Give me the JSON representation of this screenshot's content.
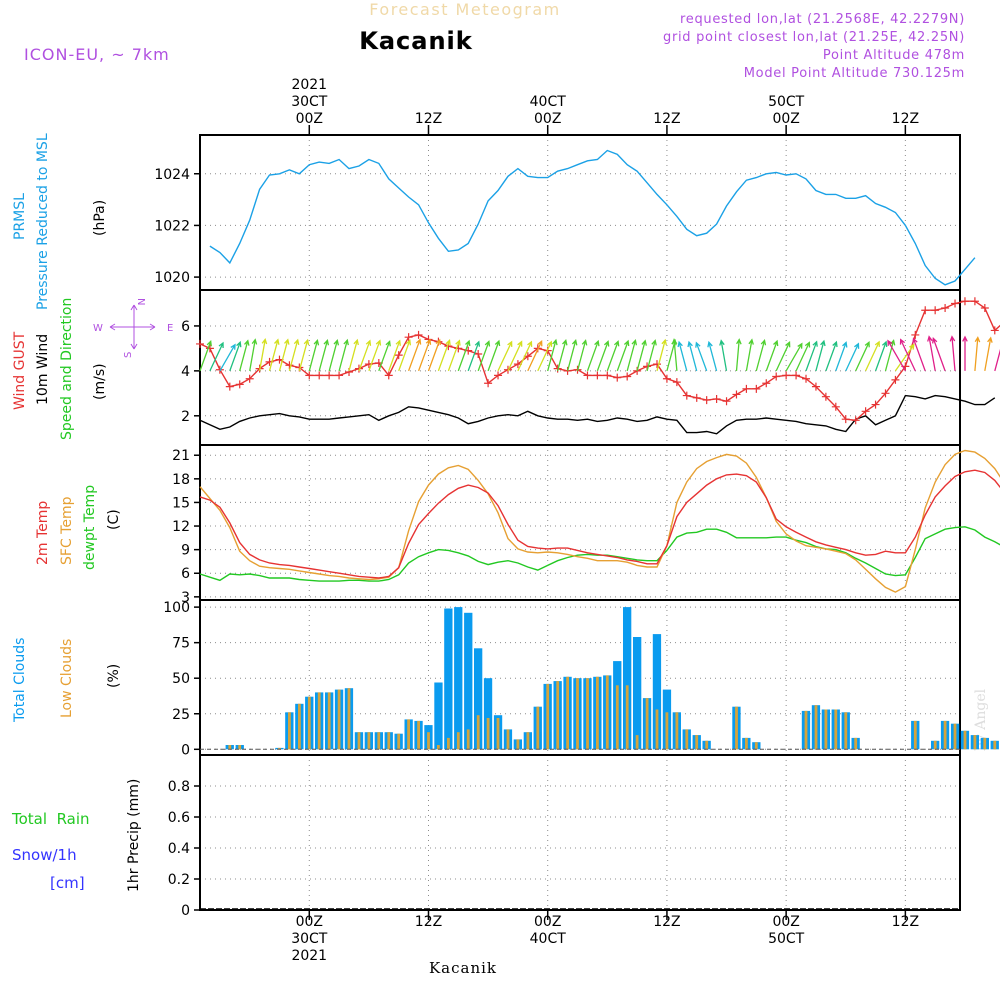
{
  "header": {
    "super_title": "Forecast Meteogram",
    "location": "Kacanik",
    "model": "ICON-EU, ~ 7km",
    "requested": "requested lon,lat (21.2568E, 42.2279N)",
    "grid_point": "grid point closest lon,lat (21.25E, 42.25N)",
    "point_alt": "Point Altitude 478m",
    "model_alt": "Model Point Altitude 730.125m",
    "watermark": "by Angel",
    "bottom_location": "Kacanik"
  },
  "colors": {
    "pressure": "#1ba1e6",
    "gust": "#e63333",
    "wind10": "#000000",
    "temp2m": "#e63333",
    "sfc": "#e6a033",
    "dewpt": "#22c822",
    "total_clouds": "#0a9bef",
    "low_clouds": "#d4a43c",
    "precip": "#000000",
    "label_purple": "#b050e0",
    "label_blue": "#3333ff",
    "label_green": "#22c822"
  },
  "time_axis": {
    "top": [
      {
        "h": 0,
        "lines": [
          "2021",
          "30CT",
          "00Z"
        ]
      },
      {
        "h": 12,
        "lines": [
          "12Z"
        ]
      },
      {
        "h": 24,
        "lines": [
          "40CT",
          "00Z"
        ]
      },
      {
        "h": 36,
        "lines": [
          "12Z"
        ]
      },
      {
        "h": 48,
        "lines": [
          "50CT",
          "00Z"
        ]
      },
      {
        "h": 60,
        "lines": [
          "12Z"
        ]
      }
    ],
    "bottom": [
      {
        "h": 0,
        "lines": [
          "00Z",
          "30CT",
          "2021"
        ]
      },
      {
        "h": 12,
        "lines": [
          "12Z"
        ]
      },
      {
        "h": 24,
        "lines": [
          "00Z",
          "40CT"
        ]
      },
      {
        "h": 36,
        "lines": [
          "12Z"
        ]
      },
      {
        "h": 48,
        "lines": [
          "00Z",
          "50CT"
        ]
      },
      {
        "h": 60,
        "lines": [
          "12Z"
        ]
      }
    ]
  },
  "panels": {
    "pressure": {
      "label1": "PRMSL",
      "label2": "Pressure Reduced to MSL",
      "units": "(hPa)"
    },
    "wind": {
      "gust": "Wind GUST",
      "w10": "10m Wind",
      "dir": "Speed and Direction",
      "units": "(m/s)",
      "compass_n": "N",
      "compass_s": "S",
      "compass_w": "W",
      "compass_e": "E"
    },
    "temp": {
      "t2m": "2m Temp",
      "sfc": "SFC Temp",
      "dew": "dewpt Temp",
      "units": "(C)"
    },
    "clouds": {
      "total": "Total Clouds",
      "low": "Low Clouds",
      "units": "(%)"
    },
    "precip": {
      "rain": "Total  Rain",
      "snow": "Snow/1h",
      "cm": "[cm]",
      "units": "1hr Precip (mm)"
    }
  },
  "chart_data": [
    {
      "type": "line",
      "title": "Pressure Reduced to MSL",
      "ylabel": "(hPa)",
      "x_start_hour": -11,
      "x_end_hour": 65.5,
      "ylim": [
        1019.5,
        1025.5
      ],
      "yticks": [
        1020,
        1022,
        1024
      ],
      "series": [
        {
          "name": "PRMSL",
          "x_start": -10,
          "step": 1,
          "values": [
            1021.2,
            1020.95,
            1020.55,
            1021.3,
            1022.2,
            1023.4,
            1023.95,
            1024.0,
            1024.15,
            1024.0,
            1024.35,
            1024.45,
            1024.4,
            1024.55,
            1024.2,
            1024.3,
            1024.55,
            1024.4,
            1023.8,
            1023.45,
            1023.1,
            1022.8,
            1022.1,
            1021.5,
            1021.0,
            1021.05,
            1021.3,
            1022.05,
            1022.95,
            1023.35,
            1023.9,
            1024.2,
            1023.9,
            1023.85,
            1023.85,
            1024.1,
            1024.2,
            1024.35,
            1024.5,
            1024.55,
            1024.9,
            1024.75,
            1024.35,
            1024.1,
            1023.65,
            1023.2,
            1022.8,
            1022.35,
            1021.85,
            1021.6,
            1021.7,
            1022.05,
            1022.75,
            1023.3,
            1023.75,
            1023.85,
            1024.0,
            1024.05,
            1023.95,
            1024.0,
            1023.8,
            1023.35,
            1023.2,
            1023.2,
            1023.05,
            1023.05,
            1023.15,
            1022.85,
            1022.7,
            1022.5,
            1022.0,
            1021.3,
            1020.45,
            1019.95,
            1019.7,
            1019.85,
            1020.3,
            1020.75
          ]
        }
      ]
    },
    {
      "type": "line",
      "title": "Wind GUST / 10m Wind Speed and Direction",
      "ylabel": "(m/s)",
      "ylim": [
        0.7,
        7.6
      ],
      "yticks": [
        2,
        4,
        6
      ],
      "series": [
        {
          "name": "Wind GUST",
          "x_start": -11,
          "step": 1,
          "values": [
            5.2,
            5.0,
            4.05,
            3.3,
            3.4,
            3.65,
            4.1,
            4.4,
            4.5,
            4.25,
            4.15,
            3.8,
            3.8,
            3.8,
            3.8,
            3.95,
            4.1,
            4.3,
            4.35,
            3.8,
            4.7,
            5.5,
            5.6,
            5.4,
            5.3,
            5.1,
            5.0,
            4.9,
            4.75,
            3.45,
            3.8,
            4.05,
            4.3,
            4.65,
            5.0,
            4.9,
            4.1,
            4.0,
            4.05,
            3.8,
            3.8,
            3.8,
            3.7,
            3.75,
            4.0,
            4.2,
            4.3,
            3.65,
            3.5,
            2.9,
            2.8,
            2.7,
            2.75,
            2.65,
            2.95,
            3.2,
            3.2,
            3.45,
            3.75,
            3.8,
            3.8,
            3.65,
            3.3,
            2.85,
            2.4,
            1.85,
            1.8,
            2.2,
            2.5,
            3.0,
            3.6,
            4.2,
            5.6,
            6.7,
            6.7,
            6.8,
            7.0,
            7.1,
            7.1,
            6.8,
            5.8,
            6.2,
            5.9
          ]
        },
        {
          "name": "10m Wind",
          "x_start": -11,
          "step": 1,
          "values": [
            1.8,
            1.6,
            1.4,
            1.5,
            1.75,
            1.9,
            2.0,
            2.05,
            2.1,
            2.0,
            1.95,
            1.85,
            1.85,
            1.85,
            1.9,
            1.95,
            2.0,
            2.05,
            1.8,
            2.0,
            2.15,
            2.4,
            2.35,
            2.25,
            2.15,
            2.05,
            1.9,
            1.65,
            1.75,
            1.9,
            2.0,
            2.05,
            2.0,
            2.2,
            2.0,
            1.9,
            1.85,
            1.85,
            1.8,
            1.85,
            1.75,
            1.8,
            1.9,
            1.85,
            1.75,
            1.8,
            1.95,
            1.85,
            1.8,
            1.25,
            1.25,
            1.3,
            1.2,
            1.55,
            1.8,
            1.85,
            1.85,
            1.9,
            1.85,
            1.8,
            1.75,
            1.65,
            1.6,
            1.55,
            1.4,
            1.3,
            1.85,
            2.0,
            1.6,
            1.8,
            2.0,
            2.9,
            2.85,
            2.75,
            2.9,
            2.85,
            2.75,
            2.65,
            2.5,
            2.5,
            2.8
          ]
        },
        {
          "name": "Wind direction (deg, toward)",
          "x_start": -11,
          "step": 1,
          "values": [
            20,
            25,
            30,
            20,
            15,
            10,
            10,
            15,
            15,
            15,
            15,
            15,
            15,
            15,
            15,
            15,
            20,
            20,
            20,
            20,
            20,
            20,
            20,
            20,
            20,
            20,
            20,
            20,
            20,
            20,
            25,
            25,
            25,
            25,
            25,
            15,
            15,
            15,
            15,
            20,
            20,
            20,
            20,
            15,
            15,
            15,
            15,
            15,
            355,
            345,
            345,
            340,
            345,
            350,
            5,
            10,
            15,
            20,
            25,
            30,
            25,
            20,
            15,
            20,
            20,
            25,
            25,
            25,
            20,
            15,
            35,
            330,
            335,
            340,
            350,
            340,
            355,
            0,
            5,
            10,
            15
          ]
        }
      ]
    },
    {
      "type": "line",
      "title": "2m Temp / SFC Temp / dewpt Temp",
      "ylabel": "(C)",
      "ylim": [
        2.6,
        22.3
      ],
      "yticks": [
        3,
        6,
        9,
        12,
        15,
        18,
        21
      ],
      "series": [
        {
          "name": "2m Temp",
          "x_start": -11,
          "step": 1,
          "values": [
            15.7,
            15.3,
            14.4,
            12.4,
            9.9,
            8.4,
            7.7,
            7.3,
            7.1,
            7.0,
            6.8,
            6.6,
            6.4,
            6.2,
            6.0,
            5.8,
            5.6,
            5.5,
            5.4,
            5.6,
            6.7,
            9.8,
            12.2,
            13.6,
            14.9,
            16.0,
            16.8,
            17.2,
            16.9,
            16.2,
            14.6,
            12.2,
            10.2,
            9.4,
            9.2,
            9.1,
            9.2,
            9.2,
            8.9,
            8.6,
            8.4,
            8.2,
            8.0,
            7.7,
            7.5,
            7.2,
            7.2,
            9.5,
            13.2,
            15.0,
            16.1,
            17.2,
            18.0,
            18.5,
            18.6,
            18.4,
            17.6,
            15.6,
            12.9,
            11.9,
            11.2,
            10.6,
            10.0,
            9.6,
            9.3,
            9.0,
            8.6,
            8.3,
            8.4,
            8.8,
            8.6,
            8.6,
            10.6,
            13.4,
            15.7,
            17.1,
            18.3,
            18.9,
            19.1,
            18.8,
            17.8,
            16.2,
            14.4,
            13.3
          ]
        },
        {
          "name": "SFC Temp",
          "x_start": -11,
          "step": 1,
          "values": [
            17.0,
            15.5,
            14.0,
            11.8,
            8.8,
            7.6,
            6.9,
            6.7,
            6.6,
            6.5,
            6.3,
            6.1,
            5.9,
            5.7,
            5.6,
            5.4,
            5.3,
            5.2,
            5.3,
            5.5,
            6.7,
            11.4,
            15.1,
            17.2,
            18.6,
            19.4,
            19.7,
            19.2,
            17.8,
            16.1,
            13.7,
            10.4,
            9.1,
            8.7,
            8.6,
            8.7,
            8.6,
            8.4,
            8.1,
            7.9,
            7.6,
            7.6,
            7.6,
            7.4,
            7.0,
            6.8,
            6.8,
            9.5,
            15.0,
            17.6,
            19.3,
            20.2,
            20.7,
            21.1,
            20.9,
            20.0,
            18.2,
            15.6,
            12.6,
            11.0,
            10.1,
            9.5,
            9.3,
            9.1,
            8.8,
            8.5,
            7.7,
            6.5,
            5.3,
            4.2,
            3.6,
            4.3,
            9.0,
            14.3,
            17.6,
            19.8,
            21.1,
            21.6,
            21.4,
            20.6,
            19.3,
            17.4,
            15.6,
            13.7
          ]
        },
        {
          "name": "dewpt Temp",
          "x_start": -11,
          "step": 1,
          "values": [
            5.9,
            5.5,
            5.1,
            5.9,
            5.8,
            5.9,
            5.7,
            5.4,
            5.4,
            5.4,
            5.2,
            5.1,
            5.0,
            5.0,
            5.0,
            5.1,
            5.1,
            5.0,
            5.0,
            5.2,
            5.8,
            7.3,
            8.1,
            8.6,
            9.0,
            8.9,
            8.6,
            8.2,
            7.5,
            7.1,
            7.4,
            7.6,
            7.3,
            6.8,
            6.4,
            7.0,
            7.6,
            8.0,
            8.3,
            8.4,
            8.3,
            8.3,
            8.1,
            7.9,
            7.7,
            7.6,
            7.6,
            8.9,
            10.6,
            11.1,
            11.2,
            11.6,
            11.6,
            11.2,
            10.5,
            10.5,
            10.5,
            10.5,
            10.6,
            10.6,
            10.2,
            9.9,
            9.4,
            9.1,
            9.0,
            8.6,
            7.9,
            7.3,
            6.6,
            5.9,
            5.7,
            5.8,
            8.0,
            10.4,
            11.0,
            11.6,
            11.8,
            11.9,
            11.5,
            10.6,
            10.0,
            9.3,
            9.2,
            9.2,
            8.5,
            8.5
          ]
        }
      ]
    },
    {
      "type": "bar",
      "title": "Total Clouds / Low Clouds",
      "ylabel": "(%)",
      "ylim": [
        -4,
        105
      ],
      "yticks": [
        0,
        25,
        50,
        75,
        100
      ],
      "series": [
        {
          "name": "Total Clouds",
          "x_start": -11,
          "step": 1,
          "values": [
            0,
            0,
            0,
            3,
            3,
            0,
            0,
            0,
            1,
            26,
            32,
            37,
            40,
            40,
            42,
            43,
            12,
            12,
            12,
            12,
            11,
            21,
            20,
            17,
            47,
            99,
            100,
            96,
            71,
            50,
            24,
            14,
            7,
            12,
            30,
            46,
            48,
            51,
            50,
            50,
            51,
            52,
            62,
            100,
            79,
            36,
            81,
            42,
            26,
            14,
            10,
            6,
            0,
            0,
            30,
            8,
            5,
            0,
            0,
            0,
            0,
            27,
            31,
            28,
            28,
            26,
            8,
            0,
            0,
            0,
            0,
            0,
            20,
            0,
            6,
            20,
            18,
            13,
            10,
            8,
            6,
            4,
            15,
            11,
            8
          ]
        },
        {
          "name": "Low Clouds",
          "x_start": -11,
          "step": 1,
          "values": [
            0,
            0,
            0,
            3,
            3,
            0,
            0,
            0,
            1,
            26,
            32,
            37,
            40,
            40,
            42,
            43,
            12,
            12,
            12,
            12,
            11,
            21,
            20,
            12,
            3,
            8,
            12,
            14,
            24,
            22,
            22,
            14,
            7,
            12,
            30,
            46,
            48,
            51,
            50,
            50,
            51,
            52,
            45,
            45,
            10,
            36,
            28,
            26,
            26,
            14,
            10,
            6,
            0,
            0,
            30,
            8,
            5,
            0,
            0,
            0,
            0,
            27,
            31,
            28,
            28,
            26,
            8,
            0,
            0,
            0,
            0,
            0,
            20,
            0,
            6,
            20,
            18,
            13,
            10,
            8,
            6,
            4,
            15,
            11,
            8
          ]
        }
      ]
    },
    {
      "type": "bar",
      "title": "1hr Precip",
      "ylabel": "1hr Precip (mm)",
      "ylim": [
        0,
        1.0
      ],
      "yticks": [
        0,
        0.2,
        0.4,
        0.6,
        0.8
      ],
      "series": [
        {
          "name": "Total Rain",
          "values": []
        }
      ]
    }
  ]
}
